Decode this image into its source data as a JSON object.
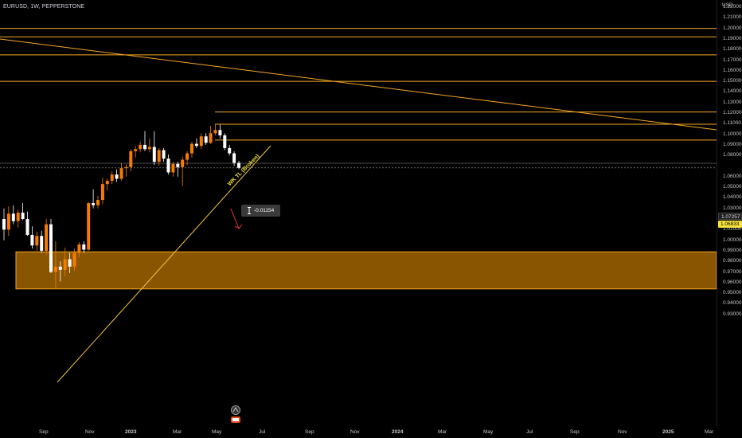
{
  "symbol": {
    "text": "EURUSD, 1W, PEPPERSTONE"
  },
  "price_axis": {
    "currency": "USD",
    "ticks": [
      "1.22000",
      "1.21000",
      "1.20000",
      "1.19000",
      "1.18000",
      "1.17000",
      "1.16000",
      "1.15000",
      "1.14000",
      "1.13000",
      "1.12000",
      "1.11000",
      "1.10000",
      "1.09000",
      "1.08000",
      "1.06000",
      "1.05000",
      "1.04000",
      "1.03000",
      "1.02000",
      "1.01000",
      "1.00000",
      "0.99000",
      "0.98000",
      "0.97000",
      "0.96000",
      "0.95000",
      "0.94000",
      "0.93000"
    ],
    "last_price_tag": "1.07257",
    "current_price_tag": "1.06833"
  },
  "time_axis": {
    "labels": [
      "Sep",
      "Nov",
      "2023",
      "Mar",
      "May",
      "Jul",
      "Sep",
      "Nov",
      "2024",
      "Mar",
      "May",
      "Jul",
      "Sep",
      "Nov",
      "2025",
      "Mar"
    ]
  },
  "annotations": {
    "trendline_label": "WK TL (Broken)",
    "measure_value": "-0.01154"
  },
  "colors": {
    "background": "#000000",
    "bull_candle": "#f57c00",
    "bear_candle": "#ffffff",
    "level_line": "#f5a623",
    "zone_fill": "#8a5500",
    "zone_border": "#f5a623",
    "trendline": "#f5c542",
    "label_yellow": "#f5e33b"
  },
  "chart_data": {
    "type": "candlestick",
    "instrument": "EURUSD",
    "timeframe": "1W",
    "ylim": [
      0.925,
      1.225
    ],
    "candles": [
      {
        "o": 1.02,
        "h": 1.03,
        "l": 1.0,
        "c": 1.01
      },
      {
        "o": 1.01,
        "h": 1.032,
        "l": 1.004,
        "c": 1.025
      },
      {
        "o": 1.025,
        "h": 1.033,
        "l": 1.015,
        "c": 1.018
      },
      {
        "o": 1.018,
        "h": 1.029,
        "l": 1.012,
        "c": 1.026
      },
      {
        "o": 1.026,
        "h": 1.035,
        "l": 1.019,
        "c": 1.02
      },
      {
        "o": 1.02,
        "h": 1.027,
        "l": 1.004,
        "c": 1.005
      },
      {
        "o": 1.005,
        "h": 1.013,
        "l": 0.992,
        "c": 0.995
      },
      {
        "o": 0.995,
        "h": 1.008,
        "l": 0.99,
        "c": 1.004
      },
      {
        "o": 1.004,
        "h": 1.009,
        "l": 0.988,
        "c": 0.99
      },
      {
        "o": 0.99,
        "h": 1.02,
        "l": 0.986,
        "c": 1.015
      },
      {
        "o": 1.015,
        "h": 1.02,
        "l": 0.969,
        "c": 0.97
      },
      {
        "o": 0.97,
        "h": 0.999,
        "l": 0.954,
        "c": 0.975
      },
      {
        "o": 0.975,
        "h": 0.98,
        "l": 0.961,
        "c": 0.972
      },
      {
        "o": 0.972,
        "h": 0.993,
        "l": 0.966,
        "c": 0.982
      },
      {
        "o": 0.982,
        "h": 0.988,
        "l": 0.969,
        "c": 0.975
      },
      {
        "o": 0.975,
        "h": 0.992,
        "l": 0.971,
        "c": 0.988
      },
      {
        "o": 0.988,
        "h": 0.998,
        "l": 0.984,
        "c": 0.996
      },
      {
        "o": 0.996,
        "h": 0.999,
        "l": 0.988,
        "c": 0.991
      },
      {
        "o": 0.991,
        "h": 1.036,
        "l": 0.99,
        "c": 1.035
      },
      {
        "o": 1.035,
        "h": 1.048,
        "l": 1.03,
        "c": 1.033
      },
      {
        "o": 1.033,
        "h": 1.042,
        "l": 1.03,
        "c": 1.038
      },
      {
        "o": 1.038,
        "h": 1.059,
        "l": 1.034,
        "c": 1.053
      },
      {
        "o": 1.053,
        "h": 1.058,
        "l": 1.047,
        "c": 1.056
      },
      {
        "o": 1.056,
        "h": 1.065,
        "l": 1.053,
        "c": 1.062
      },
      {
        "o": 1.062,
        "h": 1.067,
        "l": 1.055,
        "c": 1.058
      },
      {
        "o": 1.058,
        "h": 1.073,
        "l": 1.056,
        "c": 1.068
      },
      {
        "o": 1.068,
        "h": 1.072,
        "l": 1.06,
        "c": 1.069
      },
      {
        "o": 1.069,
        "h": 1.086,
        "l": 1.065,
        "c": 1.084
      },
      {
        "o": 1.084,
        "h": 1.089,
        "l": 1.078,
        "c": 1.086
      },
      {
        "o": 1.086,
        "h": 1.093,
        "l": 1.083,
        "c": 1.09
      },
      {
        "o": 1.09,
        "h": 1.103,
        "l": 1.084,
        "c": 1.086
      },
      {
        "o": 1.086,
        "h": 1.096,
        "l": 1.083,
        "c": 1.088
      },
      {
        "o": 1.088,
        "h": 1.103,
        "l": 1.071,
        "c": 1.074
      },
      {
        "o": 1.074,
        "h": 1.087,
        "l": 1.07,
        "c": 1.085
      },
      {
        "o": 1.085,
        "h": 1.087,
        "l": 1.074,
        "c": 1.077
      },
      {
        "o": 1.077,
        "h": 1.081,
        "l": 1.062,
        "c": 1.064
      },
      {
        "o": 1.064,
        "h": 1.074,
        "l": 1.06,
        "c": 1.072
      },
      {
        "o": 1.072,
        "h": 1.074,
        "l": 1.06,
        "c": 1.069
      },
      {
        "o": 1.069,
        "h": 1.079,
        "l": 1.051,
        "c": 1.076
      },
      {
        "o": 1.076,
        "h": 1.084,
        "l": 1.071,
        "c": 1.082
      },
      {
        "o": 1.082,
        "h": 1.093,
        "l": 1.078,
        "c": 1.091
      },
      {
        "o": 1.091,
        "h": 1.096,
        "l": 1.087,
        "c": 1.089
      },
      {
        "o": 1.089,
        "h": 1.101,
        "l": 1.086,
        "c": 1.098
      },
      {
        "o": 1.098,
        "h": 1.101,
        "l": 1.09,
        "c": 1.092
      },
      {
        "o": 1.092,
        "h": 1.108,
        "l": 1.091,
        "c": 1.101
      },
      {
        "o": 1.101,
        "h": 1.11,
        "l": 1.099,
        "c": 1.104
      },
      {
        "o": 1.104,
        "h": 1.109,
        "l": 1.096,
        "c": 1.099
      },
      {
        "o": 1.099,
        "h": 1.101,
        "l": 1.085,
        "c": 1.087
      },
      {
        "o": 1.087,
        "h": 1.09,
        "l": 1.08,
        "c": 1.082
      },
      {
        "o": 1.082,
        "h": 1.084,
        "l": 1.07,
        "c": 1.073
      },
      {
        "o": 1.073,
        "h": 1.075,
        "l": 1.067,
        "c": 1.0683
      }
    ],
    "horizontal_levels": [
      1.2,
      1.192,
      1.175,
      1.15,
      1.121,
      1.1095,
      1.0945
    ],
    "support_zone": {
      "top": 0.989,
      "bottom": 0.954
    },
    "last_price_line": 1.07257,
    "current_price_line": 1.06833
  }
}
